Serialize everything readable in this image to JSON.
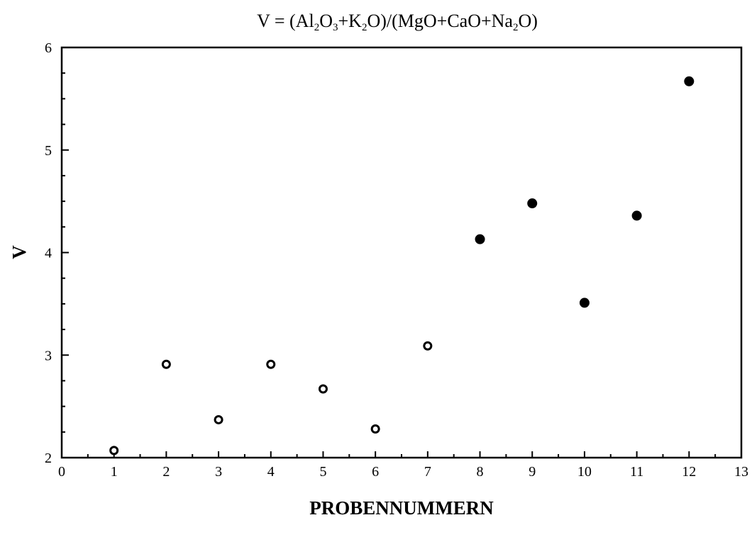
{
  "chart_data": {
    "type": "scatter",
    "title": {
      "prefix": "V = (Al",
      "sub1": "2",
      "mid1": "O",
      "sub2": "3",
      "mid2": "+K",
      "sub3": "2",
      "mid3": "O)/(MgO+CaO+Na",
      "sub4": "2",
      "suffix": "O)"
    },
    "xlabel": "PROBENNUMMERN",
    "ylabel": "V",
    "xlim": [
      0,
      13
    ],
    "ylim": [
      2,
      6
    ],
    "x_ticks": [
      "0",
      "1",
      "2",
      "3",
      "4",
      "5",
      "6",
      "7",
      "8",
      "9",
      "10",
      "11",
      "12",
      "13"
    ],
    "y_ticks": [
      "2",
      "3",
      "4",
      "5",
      "6"
    ],
    "grid": false,
    "series": [
      {
        "marker": "open-circle",
        "x": [
          1,
          2,
          3,
          4,
          5,
          6,
          7
        ],
        "y": [
          2.07,
          2.91,
          2.37,
          2.91,
          2.67,
          2.28,
          3.09
        ]
      },
      {
        "marker": "filled-circle",
        "x": [
          8,
          9,
          10,
          11,
          12
        ],
        "y": [
          4.13,
          4.48,
          3.51,
          4.36,
          5.67
        ]
      }
    ]
  }
}
